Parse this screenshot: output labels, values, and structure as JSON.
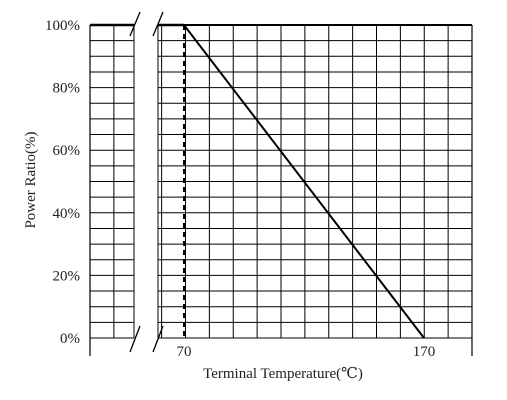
{
  "chart_data": {
    "type": "line",
    "title": "",
    "xlabel": "Terminal Temperature(℃)",
    "ylabel": "Power Ratio(%)",
    "x_ticks": [
      "70",
      "170"
    ],
    "y_ticks": [
      "100%",
      "80%",
      "60%",
      "40%",
      "20%",
      "0%"
    ],
    "ylim": [
      0,
      100
    ],
    "x_axis_break": true,
    "grid": true,
    "series": [
      {
        "points": [
          {
            "x": 70,
            "y": 100
          },
          {
            "x": 170,
            "y": 0
          }
        ]
      }
    ],
    "reference_lines": [
      {
        "x": 70,
        "style": "dashed"
      }
    ],
    "colors": {
      "line": "#000000",
      "grid": "#000000"
    }
  }
}
